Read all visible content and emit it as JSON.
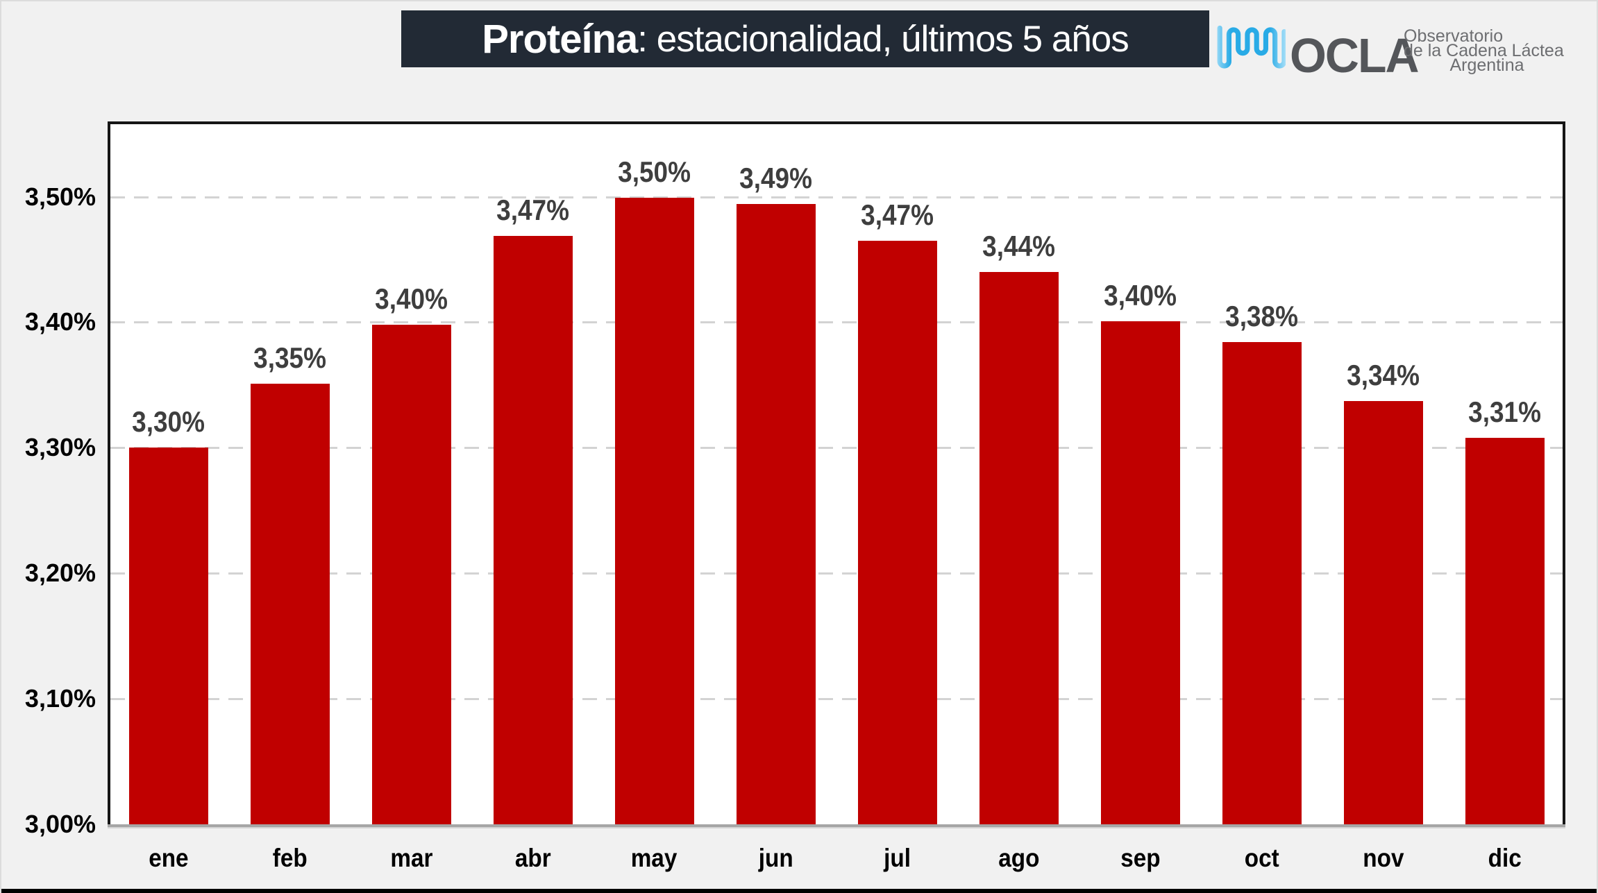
{
  "title": {
    "bold_part": "Proteína",
    "regular_part": ": estacionalidad, últimos 5 años"
  },
  "logo": {
    "name": "OCLA",
    "tagline_lines": [
      "Observatorio",
      "de la Cadena Láctea",
      "Argentina"
    ],
    "wave_icon": "waveform-icon",
    "colors": {
      "wave_light": "#a5def8",
      "wave_main": "#29abe6",
      "name_text": "#54565a",
      "tagline_text": "#6d6e71"
    }
  },
  "chart_data": {
    "type": "bar",
    "title": "Proteína: estacionalidad, últimos 5 años",
    "categories": [
      "ene",
      "feb",
      "mar",
      "abr",
      "may",
      "jun",
      "jul",
      "ago",
      "sep",
      "oct",
      "nov",
      "dic"
    ],
    "values": [
      3.3,
      3.351,
      3.398,
      3.469,
      3.499,
      3.494,
      3.465,
      3.44,
      3.401,
      3.384,
      3.337,
      3.308
    ],
    "data_labels": [
      "3,30%",
      "3,35%",
      "3,40%",
      "3,47%",
      "3,50%",
      "3,49%",
      "3,47%",
      "3,44%",
      "3,40%",
      "3,38%",
      "3,34%",
      "3,31%"
    ],
    "y_ticks": [
      {
        "value": 3.0,
        "label": "3,00%"
      },
      {
        "value": 3.1,
        "label": "3,10%"
      },
      {
        "value": 3.2,
        "label": "3,20%"
      },
      {
        "value": 3.3,
        "label": "3,30%"
      },
      {
        "value": 3.4,
        "label": "3,40%"
      },
      {
        "value": 3.5,
        "label": "3,50%"
      }
    ],
    "ylim": [
      3.0,
      3.56
    ],
    "xlabel": "",
    "ylabel": "",
    "bar_color": "#c00000",
    "label_color": "#3e3e3e",
    "grid": "horizontal-dashed",
    "legend": "none"
  }
}
